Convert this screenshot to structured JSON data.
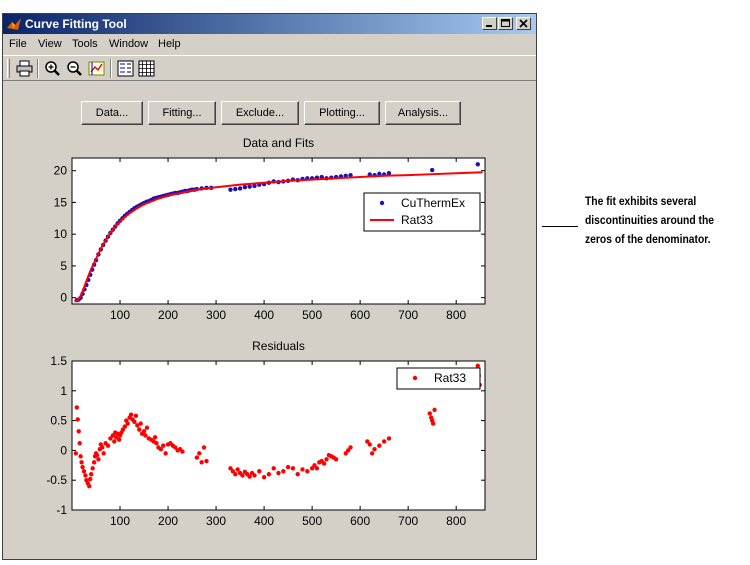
{
  "window": {
    "title": "Curve Fitting Tool",
    "controls": [
      "minimize-icon",
      "maximize-icon",
      "close-icon"
    ]
  },
  "menu": [
    "File",
    "View",
    "Tools",
    "Window",
    "Help"
  ],
  "toolbar": [
    "printer-icon",
    "zoom-in-icon",
    "zoom-out-icon",
    "data-cursor-icon",
    "legend-toggle-icon",
    "grid-toggle-icon"
  ],
  "buttons": {
    "data": "Data...",
    "fitting": "Fitting...",
    "exclude": "Exclude...",
    "plotting": "Plotting...",
    "analysis": "Analysis..."
  },
  "colors": {
    "data": "#1e10b4",
    "fit": "#ff0000",
    "residual": "#ff0000"
  },
  "annotation": {
    "line1": "The fit exhibits several",
    "line2": "discontinuities around the",
    "line3": "zeros of the denominator."
  },
  "chart_data": [
    {
      "type": "scatter",
      "title": "Data and Fits",
      "xlim": [
        0,
        860
      ],
      "ylim": [
        -1,
        22
      ],
      "xticks": [
        100,
        200,
        300,
        400,
        500,
        600,
        700,
        800
      ],
      "yticks": [
        0,
        5,
        10,
        15,
        20
      ],
      "legend": {
        "placement": "right",
        "entries": [
          "CuThermEx",
          "Rat33"
        ]
      },
      "series": [
        {
          "name": "CuThermEx",
          "kind": "points",
          "color": "#1e10b4",
          "x": [
            10,
            14,
            18,
            22,
            26,
            30,
            34,
            38,
            42,
            46,
            50,
            55,
            60,
            65,
            70,
            75,
            80,
            85,
            90,
            95,
            100,
            105,
            110,
            115,
            120,
            125,
            130,
            135,
            140,
            145,
            150,
            155,
            160,
            165,
            170,
            175,
            180,
            185,
            190,
            195,
            200,
            205,
            210,
            215,
            220,
            225,
            230,
            235,
            240,
            245,
            250,
            255,
            260,
            270,
            280,
            290,
            330,
            340,
            350,
            360,
            370,
            380,
            390,
            400,
            410,
            420,
            430,
            440,
            450,
            460,
            470,
            480,
            490,
            500,
            510,
            520,
            530,
            540,
            550,
            560,
            570,
            580,
            620,
            630,
            640,
            650,
            660,
            750,
            845
          ],
          "y": [
            -0.4,
            -0.3,
            0,
            0.6,
            1.3,
            2,
            2.8,
            3.6,
            4.4,
            5.2,
            5.9,
            6.8,
            7.6,
            8.3,
            9,
            9.6,
            10.2,
            10.7,
            11.2,
            11.7,
            12.1,
            12.5,
            12.9,
            13.2,
            13.5,
            13.8,
            14.1,
            14.3,
            14.5,
            14.7,
            14.9,
            15.1,
            15.2,
            15.4,
            15.6,
            15.7,
            15.8,
            15.9,
            16,
            16.1,
            16.2,
            16.3,
            16.4,
            16.5,
            16.5,
            16.6,
            16.7,
            16.8,
            16.8,
            16.9,
            17,
            17,
            17.1,
            17.2,
            17.3,
            17.3,
            17,
            17.1,
            17.2,
            17.4,
            17.5,
            17.6,
            17.8,
            17.9,
            18.1,
            18.3,
            18.2,
            18.3,
            18.4,
            18.6,
            18.5,
            18.7,
            18.8,
            18.8,
            18.9,
            19,
            18.8,
            18.9,
            19,
            19.1,
            19.2,
            19.3,
            19.4,
            19.3,
            19.5,
            19.4,
            19.6,
            20.1,
            21
          ]
        },
        {
          "name": "Rat33",
          "kind": "line",
          "color": "#ff0000",
          "x": [
            5,
            10,
            14,
            18,
            22,
            26,
            30,
            35,
            40,
            45,
            50,
            55,
            60,
            65,
            70,
            75,
            80,
            85,
            90,
            100,
            110,
            120,
            130,
            140,
            150,
            160,
            180,
            200,
            220,
            240,
            260,
            280,
            300,
            350,
            400,
            450,
            500,
            550,
            600,
            650,
            700,
            750,
            800,
            855
          ],
          "y": [
            -0.6,
            -0.5,
            -0.2,
            0.3,
            1,
            1.8,
            2.6,
            3.6,
            4.5,
            5.3,
            6.1,
            6.9,
            7.7,
            8.4,
            9,
            9.6,
            10.2,
            10.7,
            11.2,
            12,
            12.7,
            13.3,
            13.8,
            14.3,
            14.7,
            15,
            15.6,
            16.1,
            16.4,
            16.7,
            17,
            17.2,
            17.4,
            17.8,
            18.1,
            18.4,
            18.6,
            18.8,
            19,
            19.2,
            19.3,
            19.45,
            19.6,
            19.75
          ]
        }
      ]
    },
    {
      "type": "scatter",
      "title": "Residuals",
      "xlim": [
        0,
        860
      ],
      "ylim": [
        -1,
        1.5
      ],
      "xticks": [
        100,
        200,
        300,
        400,
        500,
        600,
        700,
        800
      ],
      "yticks": [
        -1,
        -0.5,
        0,
        0.5,
        1,
        1.5
      ],
      "legend": {
        "placement": "top-right",
        "entries": [
          "Rat33"
        ]
      },
      "series": [
        {
          "name": "Rat33",
          "kind": "points",
          "color": "#ff0000",
          "x": [
            8,
            10,
            12,
            14,
            16,
            18,
            20,
            22,
            25,
            28,
            30,
            33,
            36,
            38,
            40,
            43,
            46,
            48,
            50,
            52,
            55,
            58,
            60,
            63,
            66,
            70,
            75,
            80,
            85,
            88,
            90,
            92,
            95,
            98,
            100,
            103,
            106,
            110,
            113,
            116,
            120,
            123,
            126,
            130,
            133,
            136,
            140,
            143,
            146,
            150,
            153,
            156,
            160,
            165,
            170,
            173,
            176,
            180,
            185,
            190,
            195,
            200,
            205,
            210,
            215,
            220,
            225,
            230,
            260,
            265,
            270,
            275,
            280,
            330,
            335,
            340,
            345,
            350,
            355,
            360,
            365,
            370,
            375,
            380,
            390,
            400,
            410,
            420,
            430,
            440,
            450,
            460,
            470,
            480,
            490,
            500,
            505,
            510,
            515,
            520,
            525,
            530,
            535,
            540,
            545,
            550,
            570,
            575,
            580,
            615,
            620,
            625,
            630,
            640,
            650,
            660,
            745,
            748,
            750,
            752,
            755,
            845,
            847,
            849
          ],
          "y": [
            -0.05,
            0.72,
            0.52,
            0.32,
            0.12,
            -0.1,
            -0.2,
            -0.28,
            -0.35,
            -0.42,
            -0.5,
            -0.55,
            -0.6,
            -0.48,
            -0.4,
            -0.3,
            -0.2,
            -0.1,
            -0.05,
            -0.08,
            -0.15,
            0.02,
            0.1,
            0.05,
            -0.05,
            0.12,
            0.08,
            0.2,
            0.25,
            0.15,
            0.3,
            0.22,
            0.28,
            0.18,
            0.25,
            0.3,
            0.35,
            0.4,
            0.5,
            0.45,
            0.55,
            0.6,
            0.52,
            0.48,
            0.58,
            0.42,
            0.35,
            0.45,
            0.28,
            0.32,
            0.25,
            0.38,
            0.2,
            0.18,
            0.15,
            0.22,
            0.12,
            0.05,
            0.02,
            0.08,
            -0.05,
            0.1,
            0.12,
            0.08,
            0.05,
            0,
            0.02,
            -0.02,
            -0.12,
            -0.05,
            -0.2,
            0.05,
            -0.18,
            -0.3,
            -0.35,
            -0.4,
            -0.32,
            -0.38,
            -0.42,
            -0.36,
            -0.4,
            -0.44,
            -0.38,
            -0.42,
            -0.35,
            -0.45,
            -0.4,
            -0.3,
            -0.38,
            -0.35,
            -0.28,
            -0.3,
            -0.4,
            -0.32,
            -0.35,
            -0.3,
            -0.25,
            -0.3,
            -0.2,
            -0.18,
            -0.22,
            -0.15,
            -0.08,
            -0.1,
            -0.12,
            -0.15,
            -0.05,
            0,
            0.05,
            0.15,
            0.1,
            -0.05,
            0.02,
            0.08,
            0.15,
            0.2,
            0.62,
            0.55,
            0.5,
            0.45,
            0.68,
            1.42,
            1.25,
            1.1
          ]
        }
      ]
    }
  ]
}
